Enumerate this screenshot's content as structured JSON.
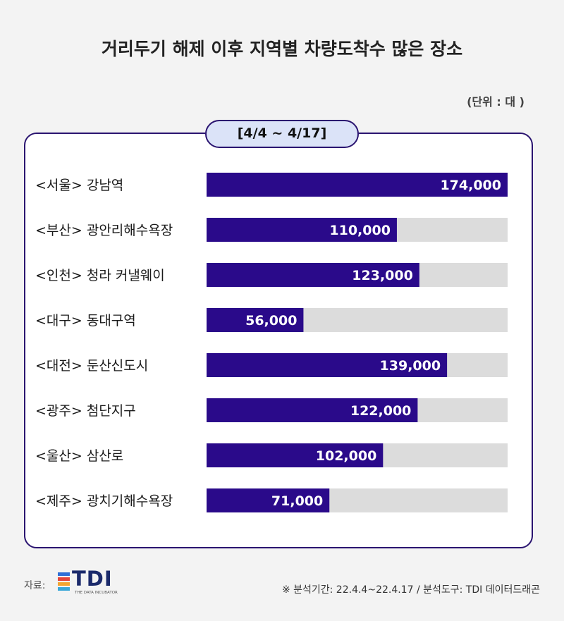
{
  "title": "거리두기 해제 이후 지역별 차량도착수 많은 장소",
  "unit": "(단위 : 대 )",
  "period": "[4/4 ~ 4/17]",
  "chart_data": {
    "type": "bar",
    "orientation": "horizontal",
    "title": "거리두기 해제 이후 지역별 차량도착수 많은 장소",
    "categories": [
      "<서울> 강남역",
      "<부산> 광안리해수욕장",
      "<인천> 청라 커낼웨이",
      "<대구> 동대구역",
      "<대전> 둔산신도시",
      "<광주> 첨단지구",
      "<울산> 삼산로",
      "<제주> 광치기해수욕장"
    ],
    "values": [
      174000,
      110000,
      123000,
      56000,
      139000,
      122000,
      102000,
      71000
    ],
    "value_labels": [
      "174,000",
      "110,000",
      "123,000",
      "56,000",
      "139,000",
      "122,000",
      "102,000",
      "71,000"
    ],
    "xlim": [
      0,
      174000
    ],
    "grid": false,
    "legend": "none",
    "colors": {
      "bar": "#2a0a8a",
      "track": "#dcdcdc",
      "label": "#ffffff"
    }
  },
  "source": {
    "label": "자료:",
    "logo_text": "TDI",
    "logo_sub": "THE DATA INCUBATOR",
    "logo_colors": [
      "#2f6fd6",
      "#e4453a",
      "#f3a531",
      "#3aa7d8"
    ]
  },
  "footnote": "※ 분석기간:  22.4.4~22.4.17 / 분석도구: TDI 데이터드래곤"
}
